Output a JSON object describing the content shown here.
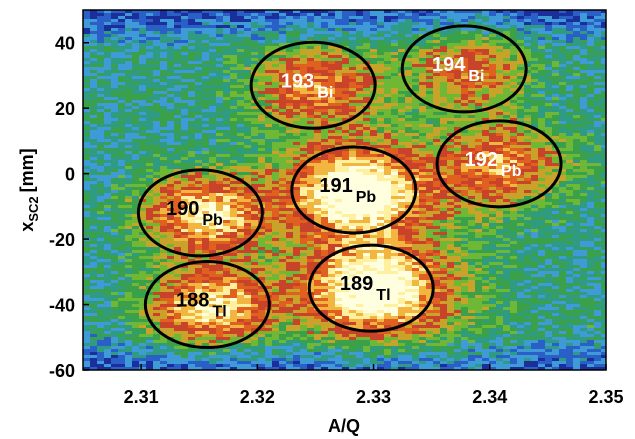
{
  "chart_data": {
    "type": "heatmap",
    "xlabel": "A/Q",
    "ylabel": {
      "main": "x",
      "subscript": "SC2",
      "unit": "[mm]"
    },
    "xlim": [
      2.305,
      2.35
    ],
    "ylim": [
      -60,
      50
    ],
    "x_ticks": [
      "2.31",
      "2.32",
      "2.33",
      "2.34",
      "2.35"
    ],
    "y_ticks": [
      "40",
      "20",
      "0",
      "-20",
      "-40",
      "-60"
    ],
    "x_tick_values": [
      2.31,
      2.32,
      2.33,
      2.34,
      2.35
    ],
    "y_tick_values": [
      40,
      20,
      0,
      -20,
      -40,
      -60
    ],
    "colormap": [
      "#1a2f9c",
      "#2a5fc8",
      "#3f9bd8",
      "#2f9b82",
      "#3aa04a",
      "#6fb836",
      "#c9a22a",
      "#c9422a",
      "#e06020",
      "#f2b640",
      "#fff0a0",
      "#ffffe0"
    ],
    "isotopes": [
      {
        "mass": "193",
        "element": "Bi",
        "aq": 2.3248,
        "x": 27,
        "intensity": "low",
        "text_color": "#ffffff"
      },
      {
        "mass": "194",
        "element": "Bi",
        "aq": 2.3378,
        "x": 32,
        "intensity": "very-low",
        "text_color": "#ffffff"
      },
      {
        "mass": "192",
        "element": "Pb",
        "aq": 2.3408,
        "x": 3,
        "intensity": "low",
        "text_color": "#ffffff"
      },
      {
        "mass": "191",
        "element": "Pb",
        "aq": 2.3283,
        "x": -5,
        "intensity": "high",
        "text_color": "#000000"
      },
      {
        "mass": "190",
        "element": "Pb",
        "aq": 2.3151,
        "x": -12,
        "intensity": "medium",
        "text_color": "#000000"
      },
      {
        "mass": "189",
        "element": "Tl",
        "aq": 2.3298,
        "x": -35,
        "intensity": "high",
        "text_color": "#000000"
      },
      {
        "mass": "188",
        "element": "Tl",
        "aq": 2.3157,
        "x": -40,
        "intensity": "medium",
        "text_color": "#000000"
      }
    ]
  }
}
